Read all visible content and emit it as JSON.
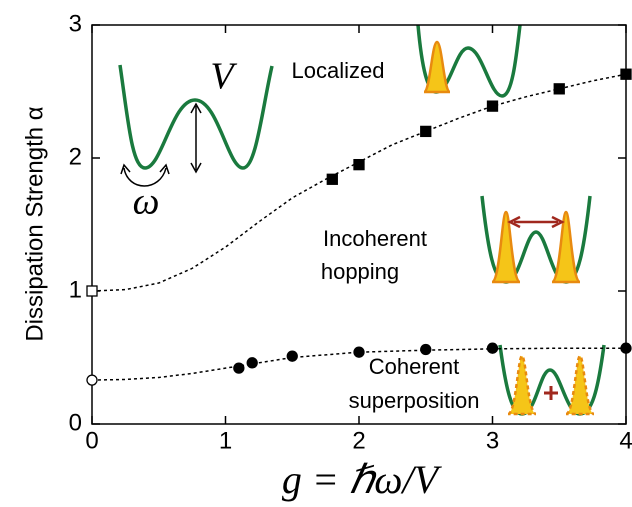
{
  "chart_data": {
    "type": "scatter",
    "xlabel": "g = ℏω/V",
    "ylabel": "Dissipation Strength  α",
    "xlim": [
      0,
      4
    ],
    "ylim": [
      0,
      3
    ],
    "xticks": [
      0,
      1,
      2,
      3,
      4
    ],
    "yticks": [
      0,
      1,
      2,
      3
    ],
    "annotations": [
      "Localized",
      "Incoherent",
      "hopping",
      "Coherent",
      "superposition",
      "V",
      "ω"
    ],
    "series": [
      {
        "x": [
          1.8,
          2.0,
          2.5,
          3.0,
          3.5,
          4.0
        ],
        "values": [
          1.84,
          1.95,
          2.2,
          2.39,
          2.52,
          2.63
        ],
        "marker": "square",
        "filled": true,
        "color": "#000000"
      },
      {
        "x": [
          0
        ],
        "values": [
          1.0
        ],
        "marker": "square",
        "filled": false,
        "color": "#000000"
      },
      {
        "x": [
          1.1,
          1.2,
          1.5,
          2.0,
          2.5,
          3.0,
          4.0
        ],
        "values": [
          0.42,
          0.46,
          0.51,
          0.54,
          0.56,
          0.57,
          0.57
        ],
        "marker": "circle",
        "filled": true,
        "color": "#000000"
      },
      {
        "x": [
          0
        ],
        "values": [
          0.33
        ],
        "marker": "circle",
        "filled": false,
        "color": "#000000"
      },
      {
        "x": [
          0,
          0.25,
          0.5,
          0.75,
          1.0,
          1.25,
          1.5,
          1.75,
          2.0,
          2.25,
          2.5,
          2.75,
          3.0,
          3.25,
          3.5,
          3.75,
          4.0
        ],
        "values": [
          1.0,
          1.01,
          1.06,
          1.17,
          1.33,
          1.52,
          1.7,
          1.84,
          1.97,
          2.1,
          2.2,
          2.3,
          2.39,
          2.46,
          2.52,
          2.58,
          2.63
        ],
        "line": "dotted",
        "color": "#000000"
      },
      {
        "x": [
          0,
          0.25,
          0.5,
          0.75,
          1.0,
          1.25,
          1.5,
          1.75,
          2.0,
          2.5,
          3.0,
          3.5,
          4.0
        ],
        "values": [
          0.33,
          0.335,
          0.35,
          0.38,
          0.42,
          0.46,
          0.5,
          0.52,
          0.54,
          0.555,
          0.565,
          0.57,
          0.57
        ],
        "line": "dotted",
        "color": "#000000"
      }
    ]
  }
}
